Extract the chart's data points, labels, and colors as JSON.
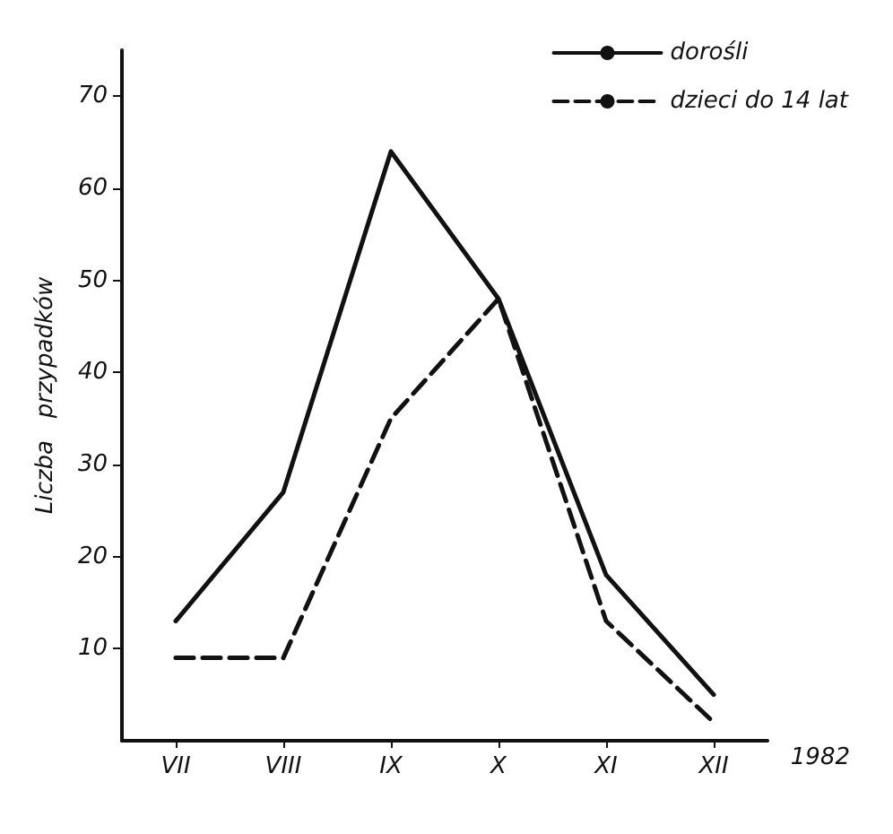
{
  "chart_data": {
    "type": "line",
    "ylabel": "Liczba   przypadków",
    "categories": [
      "VII",
      "VIII",
      "IX",
      "X",
      "XI",
      "XII"
    ],
    "series": [
      {
        "name": "dorośli",
        "color": "#111111",
        "values": [
          13,
          27,
          64,
          48,
          18,
          5
        ],
        "line_style": "solid"
      },
      {
        "name": "dzieci do 14 lat",
        "color": "#111111",
        "values": [
          9,
          9,
          35,
          48,
          13,
          2
        ],
        "line_style": "dashed"
      }
    ],
    "ylim": [
      0,
      75
    ],
    "yticks": [
      10,
      20,
      30,
      40,
      50,
      60,
      70
    ],
    "legend": "top right",
    "marker": "none",
    "grid": false,
    "annotations": [
      "1982"
    ]
  }
}
